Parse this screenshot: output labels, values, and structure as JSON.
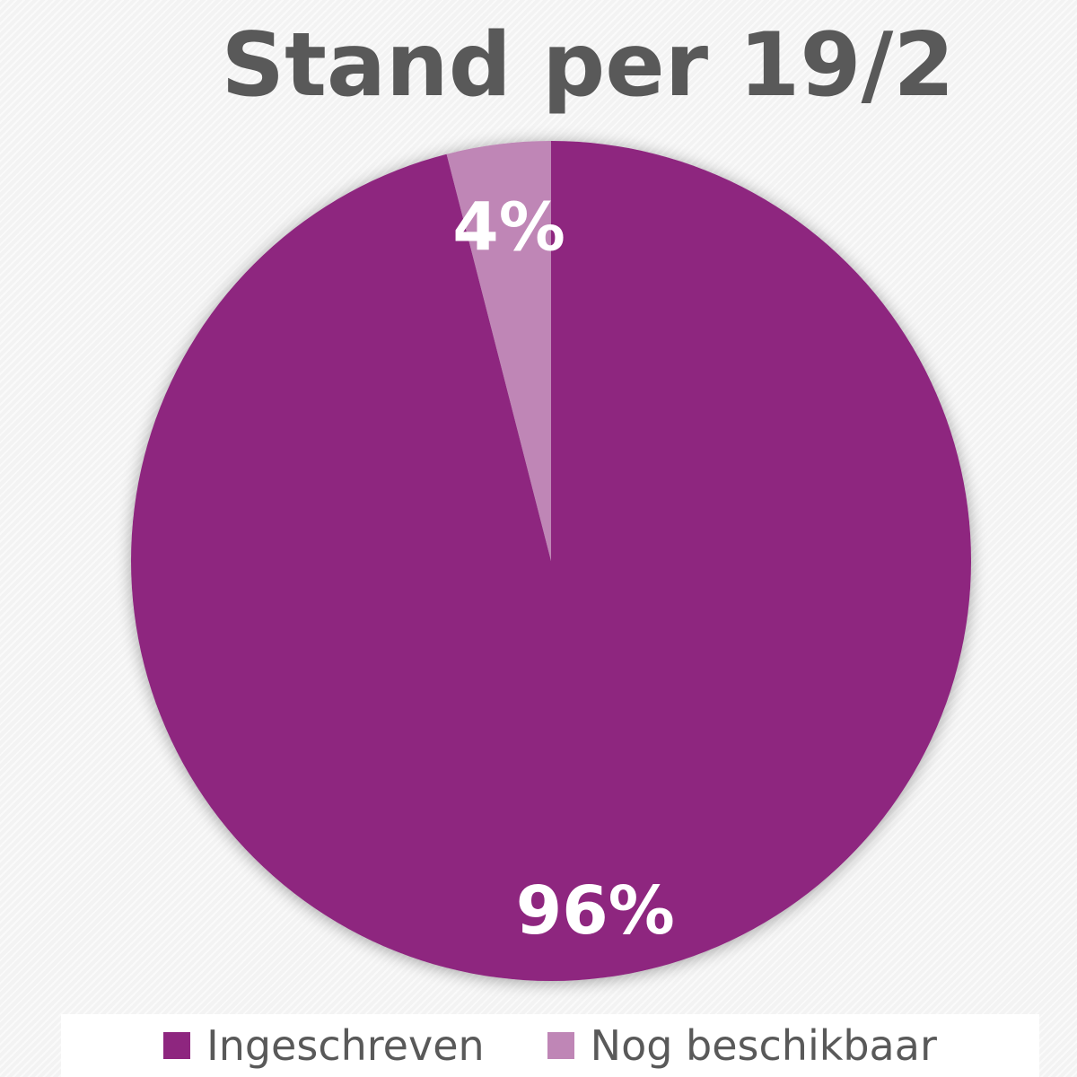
{
  "chart_data": {
    "type": "pie",
    "title": "Stand per 19/2",
    "categories": [
      "Ingeschreven",
      "Nog beschikbaar"
    ],
    "values": [
      96,
      4
    ],
    "data_labels": [
      "96%",
      "4%"
    ],
    "colors": [
      "#8e267f",
      "#bf86b6"
    ],
    "legend": "bottom",
    "label_color": "#ffffff"
  }
}
